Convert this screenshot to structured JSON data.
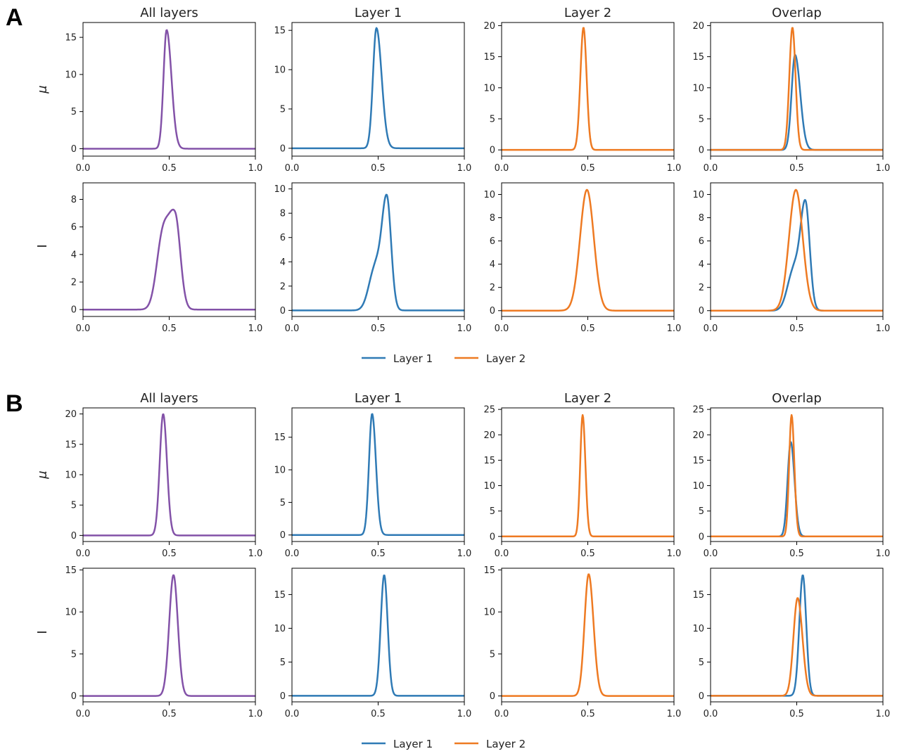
{
  "panels": [
    {
      "label": "A",
      "row_labels": [
        "μ",
        "I"
      ],
      "legend": [
        "Layer 1",
        "Layer 2"
      ]
    },
    {
      "label": "B",
      "row_labels": [
        "μ",
        "I"
      ],
      "legend": [
        "Layer 1",
        "Layer 2"
      ]
    }
  ],
  "colors": {
    "all_layers": "#8352a8",
    "layer_1": "#2f7ab5",
    "layer_2": "#ee7a22",
    "axes": "#000000"
  },
  "chart_data": [
    {
      "panel": "A",
      "row": "μ",
      "type": "line",
      "title": "All layers",
      "xlim": [
        0,
        1
      ],
      "ylim": [
        -1,
        17
      ],
      "xticks": [
        "0.0",
        "0.5",
        "1.0"
      ],
      "yticks": [
        0,
        5,
        10,
        15
      ],
      "series": [
        {
          "color": "#8352a8",
          "components": [
            {
              "mu": 0.485,
              "sl": 0.018,
              "sr": 0.028,
              "a": 16.0
            }
          ]
        }
      ]
    },
    {
      "panel": "A",
      "row": "μ",
      "type": "line",
      "title": "Layer 1",
      "xlim": [
        0,
        1
      ],
      "ylim": [
        -1,
        16
      ],
      "xticks": [
        "0.0",
        "0.5",
        "1.0"
      ],
      "yticks": [
        0,
        5,
        10,
        15
      ],
      "series": [
        {
          "name": "Layer 1",
          "color": "#2f7ab5",
          "components": [
            {
              "mu": 0.49,
              "sl": 0.02,
              "sr": 0.03,
              "a": 15.3
            }
          ]
        }
      ]
    },
    {
      "panel": "A",
      "row": "μ",
      "type": "line",
      "title": "Layer 2",
      "xlim": [
        0,
        1
      ],
      "ylim": [
        -1,
        20.5
      ],
      "xticks": [
        "0.0",
        "0.5",
        "1.0"
      ],
      "yticks": [
        0,
        5,
        10,
        15,
        20
      ],
      "series": [
        {
          "name": "Layer 2",
          "color": "#ee7a22",
          "components": [
            {
              "mu": 0.475,
              "sl": 0.018,
              "sr": 0.018,
              "a": 19.7
            }
          ]
        }
      ]
    },
    {
      "panel": "A",
      "row": "μ",
      "type": "line",
      "title": "Overlap",
      "xlim": [
        0,
        1
      ],
      "ylim": [
        -1,
        20.5
      ],
      "xticks": [
        "0.0",
        "0.5",
        "1.0"
      ],
      "yticks": [
        0,
        5,
        10,
        15,
        20
      ],
      "series": [
        {
          "name": "Layer 1",
          "color": "#2f7ab5",
          "components": [
            {
              "mu": 0.49,
              "sl": 0.02,
              "sr": 0.03,
              "a": 15.3
            }
          ]
        },
        {
          "name": "Layer 2",
          "color": "#ee7a22",
          "components": [
            {
              "mu": 0.475,
              "sl": 0.018,
              "sr": 0.018,
              "a": 19.7
            }
          ]
        }
      ]
    },
    {
      "panel": "A",
      "row": "I",
      "type": "line",
      "title": "",
      "xlim": [
        0,
        1
      ],
      "ylim": [
        -0.5,
        9.2
      ],
      "xticks": [
        "0.0",
        "0.5",
        "1.0"
      ],
      "yticks": [
        0,
        2,
        4,
        6,
        8
      ],
      "series": [
        {
          "color": "#8352a8",
          "components": [
            {
              "mu": 0.535,
              "sl": 0.04,
              "sr": 0.03,
              "a": 6.6
            },
            {
              "mu": 0.46,
              "sl": 0.035,
              "sr": 0.035,
              "a": 4.8
            }
          ]
        }
      ]
    },
    {
      "panel": "A",
      "row": "I",
      "type": "line",
      "title": "",
      "xlim": [
        0,
        1
      ],
      "ylim": [
        -0.5,
        10.5
      ],
      "xticks": [
        "0.0",
        "0.5",
        "1.0"
      ],
      "yticks": [
        0,
        2,
        4,
        6,
        8,
        10
      ],
      "series": [
        {
          "name": "Layer 1",
          "color": "#2f7ab5",
          "components": [
            {
              "mu": 0.55,
              "sl": 0.03,
              "sr": 0.025,
              "a": 9.3
            },
            {
              "mu": 0.48,
              "sl": 0.035,
              "sr": 0.03,
              "a": 3.3
            }
          ]
        }
      ]
    },
    {
      "panel": "A",
      "row": "I",
      "type": "line",
      "title": "",
      "xlim": [
        0,
        1
      ],
      "ylim": [
        -0.5,
        11.0
      ],
      "xticks": [
        "0.0",
        "0.5",
        "1.0"
      ],
      "yticks": [
        0,
        2,
        4,
        6,
        8,
        10
      ],
      "series": [
        {
          "name": "Layer 2",
          "color": "#ee7a22",
          "components": [
            {
              "mu": 0.495,
              "sl": 0.04,
              "sr": 0.04,
              "a": 10.4
            }
          ]
        }
      ]
    },
    {
      "panel": "A",
      "row": "I",
      "type": "line",
      "title": "",
      "xlim": [
        0,
        1
      ],
      "ylim": [
        -0.5,
        11.0
      ],
      "xticks": [
        "0.0",
        "0.5",
        "1.0"
      ],
      "yticks": [
        0,
        2,
        4,
        6,
        8,
        10
      ],
      "series": [
        {
          "name": "Layer 1",
          "color": "#2f7ab5",
          "components": [
            {
              "mu": 0.55,
              "sl": 0.03,
              "sr": 0.025,
              "a": 9.3
            },
            {
              "mu": 0.48,
              "sl": 0.035,
              "sr": 0.03,
              "a": 3.3
            }
          ]
        },
        {
          "name": "Layer 2",
          "color": "#ee7a22",
          "components": [
            {
              "mu": 0.495,
              "sl": 0.04,
              "sr": 0.04,
              "a": 10.4
            }
          ]
        }
      ]
    },
    {
      "panel": "B",
      "row": "μ",
      "type": "line",
      "title": "All layers",
      "xlim": [
        0,
        1
      ],
      "ylim": [
        -1,
        21
      ],
      "xticks": [
        "0.0",
        "0.5",
        "1.0"
      ],
      "yticks": [
        0,
        5,
        10,
        15,
        20
      ],
      "series": [
        {
          "color": "#8352a8",
          "components": [
            {
              "mu": 0.465,
              "sl": 0.02,
              "sr": 0.022,
              "a": 20.0
            }
          ]
        }
      ]
    },
    {
      "panel": "B",
      "row": "μ",
      "type": "line",
      "title": "Layer 1",
      "xlim": [
        0,
        1
      ],
      "ylim": [
        -1,
        19.5
      ],
      "xticks": [
        "0.0",
        "0.5",
        "1.0"
      ],
      "yticks": [
        0,
        5,
        10,
        15
      ],
      "series": [
        {
          "name": "Layer 1",
          "color": "#2f7ab5",
          "components": [
            {
              "mu": 0.465,
              "sl": 0.018,
              "sr": 0.022,
              "a": 18.6
            }
          ]
        }
      ]
    },
    {
      "panel": "B",
      "row": "μ",
      "type": "line",
      "title": "Layer 2",
      "xlim": [
        0,
        1
      ],
      "ylim": [
        -1,
        25.3
      ],
      "xticks": [
        "0.0",
        "0.5",
        "1.0"
      ],
      "yticks": [
        0,
        5,
        10,
        15,
        20,
        25
      ],
      "series": [
        {
          "name": "Layer 2",
          "color": "#ee7a22",
          "components": [
            {
              "mu": 0.47,
              "sl": 0.014,
              "sr": 0.016,
              "a": 23.9
            }
          ]
        }
      ]
    },
    {
      "panel": "B",
      "row": "μ",
      "type": "line",
      "title": "Overlap",
      "xlim": [
        0,
        1
      ],
      "ylim": [
        -1,
        25.3
      ],
      "xticks": [
        "0.0",
        "0.5",
        "1.0"
      ],
      "yticks": [
        0,
        5,
        10,
        15,
        20,
        25
      ],
      "series": [
        {
          "name": "Layer 1",
          "color": "#2f7ab5",
          "components": [
            {
              "mu": 0.465,
              "sl": 0.018,
              "sr": 0.022,
              "a": 18.6
            }
          ]
        },
        {
          "name": "Layer 2",
          "color": "#ee7a22",
          "components": [
            {
              "mu": 0.47,
              "sl": 0.014,
              "sr": 0.016,
              "a": 23.9
            }
          ]
        }
      ]
    },
    {
      "panel": "B",
      "row": "I",
      "type": "line",
      "title": "",
      "xlim": [
        0,
        1
      ],
      "ylim": [
        -0.7,
        15.2
      ],
      "xticks": [
        "0.0",
        "0.5",
        "1.0"
      ],
      "yticks": [
        0,
        5,
        10,
        15
      ],
      "series": [
        {
          "color": "#8352a8",
          "components": [
            {
              "mu": 0.525,
              "sl": 0.025,
              "sr": 0.025,
              "a": 14.4
            }
          ]
        }
      ]
    },
    {
      "panel": "B",
      "row": "I",
      "type": "line",
      "title": "",
      "xlim": [
        0,
        1
      ],
      "ylim": [
        -0.9,
        18.9
      ],
      "xticks": [
        "0.0",
        "0.5",
        "1.0"
      ],
      "yticks": [
        0,
        5,
        10,
        15
      ],
      "series": [
        {
          "name": "Layer 1",
          "color": "#2f7ab5",
          "components": [
            {
              "mu": 0.535,
              "sl": 0.02,
              "sr": 0.02,
              "a": 17.9
            }
          ]
        }
      ]
    },
    {
      "panel": "B",
      "row": "I",
      "type": "line",
      "title": "",
      "xlim": [
        0,
        1
      ],
      "ylim": [
        -0.7,
        15.2
      ],
      "xticks": [
        "0.0",
        "0.5",
        "1.0"
      ],
      "yticks": [
        0,
        5,
        10,
        15
      ],
      "series": [
        {
          "name": "Layer 2",
          "color": "#ee7a22",
          "components": [
            {
              "mu": 0.505,
              "sl": 0.024,
              "sr": 0.028,
              "a": 14.5
            }
          ]
        }
      ]
    },
    {
      "panel": "B",
      "row": "I",
      "type": "line",
      "title": "",
      "xlim": [
        0,
        1
      ],
      "ylim": [
        -0.9,
        18.9
      ],
      "xticks": [
        "0.0",
        "0.5",
        "1.0"
      ],
      "yticks": [
        0,
        5,
        10,
        15
      ],
      "series": [
        {
          "name": "Layer 1",
          "color": "#2f7ab5",
          "components": [
            {
              "mu": 0.535,
              "sl": 0.02,
              "sr": 0.02,
              "a": 17.9
            }
          ]
        },
        {
          "name": "Layer 2",
          "color": "#ee7a22",
          "components": [
            {
              "mu": 0.505,
              "sl": 0.024,
              "sr": 0.028,
              "a": 14.5
            }
          ]
        }
      ]
    }
  ]
}
